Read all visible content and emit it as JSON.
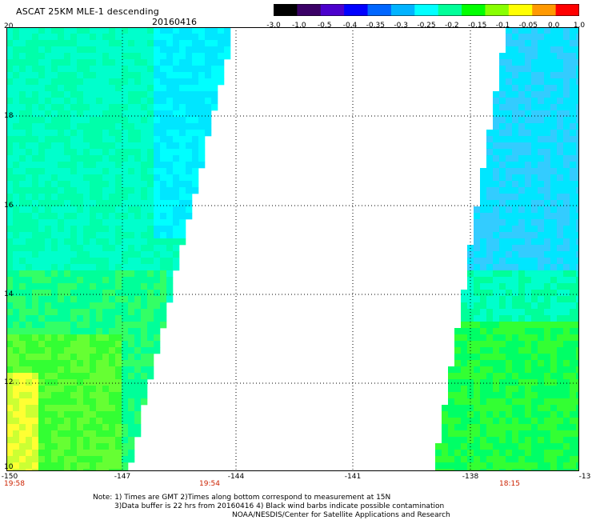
{
  "header": {
    "title": "ASCAT 25KM MLE-1 descending",
    "date": "20160416"
  },
  "colorbar": {
    "labels": [
      "-3.0",
      "-1.0",
      "-0.5",
      "-0.4",
      "-0.35",
      "-0.3",
      "-0.25",
      "-0.2",
      "-0.15",
      "-0.1",
      "-0.05",
      "0.0",
      "1.0"
    ],
    "colors": [
      "#000000",
      "#3a0066",
      "#4b00cc",
      "#0000ff",
      "#0066ff",
      "#00b3ff",
      "#00ffff",
      "#00ff99",
      "#00ff00",
      "#88ff00",
      "#ffff00",
      "#ff9900",
      "#ff0000"
    ]
  },
  "axes": {
    "lat_labels": [
      "20",
      "18",
      "16",
      "14",
      "12",
      "10"
    ],
    "lon_labels": [
      "-150",
      "-147",
      "-144",
      "-141",
      "-138",
      "-13"
    ],
    "time_labels": [
      "19:58",
      "19:54",
      "18:15"
    ]
  },
  "notes": {
    "line1": "Note: 1) Times are GMT 2)Times along bottom correspond to measurement at 15N",
    "line2": "3)Data buffer is 22 hrs from 20160416 4) Black wind barbs indicate possible contamination",
    "line3": "NOAA/NESDIS/Center for Satellite Applications and Research"
  }
}
